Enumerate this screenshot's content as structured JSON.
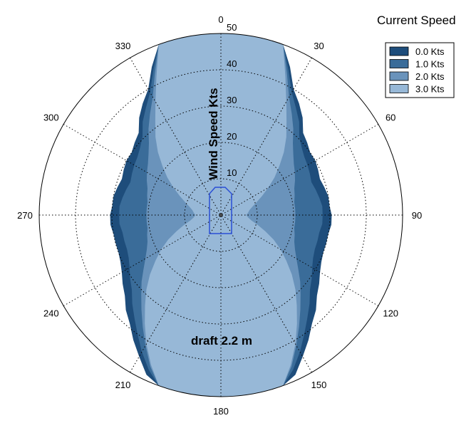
{
  "chart_data": {
    "type": "polar-area",
    "legend_title": "Current Speed",
    "legend_position": "top-right",
    "radial_axis_label": "Wind Speed Kts",
    "radial_range": [
      0,
      50
    ],
    "radial_ticks": [
      "10",
      "20",
      "30",
      "40",
      "50"
    ],
    "angle_ticks": [
      "0",
      "30",
      "60",
      "90",
      "120",
      "150",
      "180",
      "210",
      "240",
      "270",
      "300",
      "330"
    ],
    "annotation": "draft  2.2 m",
    "grid": true,
    "series": [
      {
        "name": "0.0 Kts",
        "color": "#1e4d7b",
        "angles": [
          0,
          5,
          10,
          15,
          20,
          25,
          30,
          35,
          40,
          45,
          50,
          55,
          60,
          65,
          70,
          75,
          80,
          85,
          90,
          95,
          100,
          105,
          110,
          115,
          120,
          125,
          130,
          135,
          140,
          145,
          150,
          155,
          160,
          165,
          170,
          175,
          180
        ],
        "radii": [
          50,
          50,
          50,
          50,
          50,
          45,
          40,
          37.5,
          35,
          32,
          31,
          30,
          30,
          29.5,
          29,
          29.5,
          30,
          30,
          30.5,
          30.5,
          30,
          30,
          30,
          30.5,
          31.5,
          33,
          34.5,
          37,
          39,
          42,
          45,
          48.5,
          50,
          50,
          50,
          50,
          50
        ]
      },
      {
        "name": "1.0 Kts",
        "color": "#3a6c99",
        "angles": [
          0,
          5,
          10,
          15,
          20,
          25,
          30,
          35,
          40,
          45,
          50,
          55,
          60,
          65,
          70,
          75,
          80,
          85,
          90,
          95,
          100,
          105,
          110,
          115,
          120,
          125,
          130,
          135,
          140,
          145,
          150,
          155,
          160,
          165,
          170,
          175,
          180
        ],
        "radii": [
          50,
          50,
          50,
          50,
          50,
          44,
          39,
          36,
          33.5,
          30.5,
          29,
          28,
          27.5,
          27,
          26.5,
          27,
          27.5,
          28,
          28,
          28,
          27.5,
          27.5,
          27.5,
          28,
          29,
          30.5,
          32,
          34.5,
          37,
          40,
          43.5,
          47,
          50,
          50,
          50,
          50,
          50
        ]
      },
      {
        "name": "2.0 Kts",
        "color": "#6a93bb",
        "angles": [
          0,
          5,
          10,
          15,
          20,
          25,
          30,
          35,
          40,
          45,
          50,
          55,
          60,
          65,
          70,
          75,
          80,
          85,
          90,
          95,
          100,
          105,
          110,
          115,
          120,
          125,
          130,
          135,
          140,
          145,
          150,
          155,
          160,
          165,
          170,
          175,
          180
        ],
        "radii": [
          50,
          50,
          50,
          50,
          50,
          43,
          37.5,
          34,
          31,
          28,
          26,
          24.5,
          23.5,
          22.5,
          21.5,
          21,
          20.5,
          20.5,
          20.5,
          20.5,
          20.5,
          21,
          21.5,
          22.5,
          24,
          26,
          28.5,
          31,
          34,
          37.5,
          41.5,
          46,
          50,
          50,
          50,
          50,
          50
        ]
      },
      {
        "name": "3.0 Kts",
        "color": "#97b8d7",
        "angles": [
          0,
          5,
          10,
          15,
          20,
          25,
          30,
          35,
          40,
          45,
          50,
          55,
          60,
          65,
          70,
          75,
          80,
          85,
          90,
          95,
          100,
          105,
          110,
          115,
          120,
          125,
          130,
          135,
          140,
          145,
          150,
          155,
          160,
          165,
          170,
          175,
          180
        ],
        "radii": [
          50,
          50,
          50,
          50,
          50,
          42,
          36,
          31.5,
          28,
          24.5,
          21,
          18,
          15,
          12.5,
          10.5,
          9,
          8,
          7.5,
          7,
          7.5,
          8.5,
          10.5,
          13,
          16,
          19,
          22,
          25.5,
          29,
          32.5,
          36.5,
          41,
          45.5,
          50,
          50,
          50,
          50,
          50
        ]
      }
    ]
  }
}
